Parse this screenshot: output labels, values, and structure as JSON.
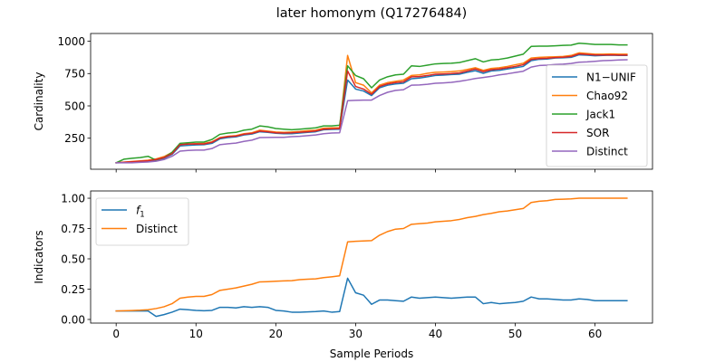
{
  "title": "later homonym (Q17276484)",
  "chart_data": [
    {
      "type": "line",
      "ylabel": "Cardinality",
      "xlabel": "",
      "xlim": [
        -3.2,
        67.2
      ],
      "ylim": [
        10,
        1060
      ],
      "xticks": [
        0,
        10,
        20,
        30,
        40,
        50,
        60
      ],
      "yticks": [
        250,
        500,
        750,
        1000
      ],
      "show_x_tick_labels": false,
      "grid": false,
      "legend_position": "lower-right",
      "x": [
        0,
        1,
        2,
        3,
        4,
        5,
        6,
        7,
        8,
        9,
        10,
        11,
        12,
        13,
        14,
        15,
        16,
        17,
        18,
        19,
        20,
        21,
        22,
        23,
        24,
        25,
        26,
        27,
        28,
        29,
        30,
        31,
        32,
        33,
        34,
        35,
        36,
        37,
        38,
        39,
        40,
        41,
        42,
        43,
        44,
        45,
        46,
        47,
        48,
        49,
        50,
        51,
        52,
        53,
        54,
        55,
        56,
        57,
        58,
        59,
        60,
        61,
        62,
        63,
        64
      ],
      "series": [
        {
          "name": "N1−UNIF",
          "color": "#1f77b4",
          "values": [
            60,
            62,
            65,
            68,
            72,
            80,
            95,
            125,
            190,
            195,
            198,
            200,
            210,
            245,
            255,
            260,
            275,
            282,
            300,
            295,
            288,
            285,
            285,
            290,
            295,
            300,
            315,
            318,
            320,
            700,
            630,
            615,
            580,
            640,
            660,
            670,
            675,
            710,
            715,
            725,
            735,
            738,
            742,
            745,
            760,
            772,
            752,
            770,
            775,
            785,
            795,
            805,
            850,
            860,
            862,
            870,
            872,
            875,
            895,
            892,
            888,
            890,
            892,
            890,
            890
          ]
        },
        {
          "name": "Chao92",
          "color": "#ff7f0e",
          "values": [
            60,
            65,
            70,
            75,
            80,
            90,
            108,
            140,
            200,
            205,
            208,
            210,
            222,
            255,
            265,
            270,
            285,
            292,
            312,
            305,
            298,
            295,
            298,
            302,
            308,
            312,
            328,
            330,
            330,
            890,
            680,
            660,
            600,
            660,
            680,
            690,
            700,
            735,
            740,
            752,
            760,
            762,
            765,
            770,
            782,
            795,
            775,
            790,
            795,
            805,
            818,
            830,
            870,
            875,
            878,
            880,
            882,
            890,
            910,
            905,
            900,
            900,
            902,
            900,
            900
          ]
        },
        {
          "name": "Jack1",
          "color": "#2ca02c",
          "values": [
            60,
            88,
            95,
            100,
            110,
            80,
            100,
            140,
            210,
            215,
            220,
            220,
            240,
            280,
            290,
            295,
            312,
            320,
            345,
            338,
            325,
            320,
            315,
            320,
            325,
            330,
            345,
            345,
            350,
            810,
            735,
            710,
            640,
            700,
            725,
            740,
            745,
            810,
            805,
            815,
            825,
            828,
            830,
            835,
            850,
            865,
            840,
            855,
            860,
            870,
            885,
            900,
            960,
            962,
            962,
            965,
            968,
            970,
            985,
            980,
            975,
            975,
            975,
            972,
            972
          ]
        },
        {
          "name": "SOR",
          "color": "#d62728",
          "values": [
            60,
            64,
            68,
            72,
            76,
            85,
            100,
            130,
            200,
            205,
            206,
            205,
            218,
            252,
            262,
            266,
            280,
            287,
            305,
            300,
            292,
            290,
            292,
            296,
            300,
            306,
            320,
            322,
            325,
            770,
            650,
            630,
            590,
            650,
            670,
            680,
            686,
            725,
            727,
            735,
            745,
            747,
            750,
            755,
            770,
            785,
            765,
            780,
            785,
            795,
            805,
            818,
            860,
            866,
            868,
            874,
            876,
            882,
            902,
            898,
            894,
            894,
            895,
            893,
            893
          ]
        },
        {
          "name": "Distinct",
          "color": "#9467bd",
          "values": [
            60,
            60,
            60,
            63,
            66,
            72,
            85,
            110,
            150,
            155,
            158,
            158,
            170,
            200,
            207,
            212,
            225,
            235,
            255,
            256,
            257,
            257,
            262,
            265,
            270,
            275,
            285,
            290,
            292,
            540,
            543,
            545,
            545,
            580,
            605,
            620,
            625,
            660,
            662,
            667,
            675,
            678,
            682,
            690,
            700,
            712,
            720,
            728,
            740,
            748,
            758,
            768,
            800,
            812,
            815,
            820,
            823,
            828,
            838,
            840,
            845,
            850,
            852,
            855,
            857
          ]
        }
      ]
    },
    {
      "type": "line",
      "ylabel": "Indicators",
      "xlabel": "Sample Periods",
      "xlim": [
        -3.2,
        67.2
      ],
      "ylim": [
        -0.03,
        1.06
      ],
      "xticks": [
        0,
        10,
        20,
        30,
        40,
        50,
        60
      ],
      "yticks": [
        0.0,
        0.25,
        0.5,
        0.75,
        1.0
      ],
      "ytick_labels": [
        "0.00",
        "0.25",
        "0.50",
        "0.75",
        "1.00"
      ],
      "grid": false,
      "legend_position": "upper-left",
      "x": [
        0,
        1,
        2,
        3,
        4,
        5,
        6,
        7,
        8,
        9,
        10,
        11,
        12,
        13,
        14,
        15,
        16,
        17,
        18,
        19,
        20,
        21,
        22,
        23,
        24,
        25,
        26,
        27,
        28,
        29,
        30,
        31,
        32,
        33,
        34,
        35,
        36,
        37,
        38,
        39,
        40,
        41,
        42,
        43,
        44,
        45,
        46,
        47,
        48,
        49,
        50,
        51,
        52,
        53,
        54,
        55,
        56,
        57,
        58,
        59,
        60,
        61,
        62,
        63,
        64
      ],
      "series": [
        {
          "name": "f",
          "name_subscript": "1",
          "color": "#1f77b4",
          "values": [
            0.07,
            0.07,
            0.07,
            0.07,
            0.07,
            0.025,
            0.04,
            0.06,
            0.085,
            0.08,
            0.075,
            0.072,
            0.075,
            0.1,
            0.1,
            0.095,
            0.105,
            0.1,
            0.105,
            0.1,
            0.075,
            0.07,
            0.06,
            0.06,
            0.062,
            0.065,
            0.07,
            0.06,
            0.065,
            0.34,
            0.22,
            0.2,
            0.125,
            0.16,
            0.16,
            0.155,
            0.15,
            0.185,
            0.175,
            0.18,
            0.185,
            0.18,
            0.175,
            0.18,
            0.185,
            0.185,
            0.13,
            0.14,
            0.13,
            0.135,
            0.14,
            0.15,
            0.185,
            0.17,
            0.17,
            0.165,
            0.16,
            0.16,
            0.17,
            0.165,
            0.155,
            0.155,
            0.155,
            0.155,
            0.155
          ]
        },
        {
          "name": "Distinct",
          "color": "#ff7f0e",
          "values": [
            0.07,
            0.072,
            0.074,
            0.076,
            0.08,
            0.09,
            0.105,
            0.13,
            0.175,
            0.185,
            0.19,
            0.19,
            0.205,
            0.24,
            0.25,
            0.26,
            0.275,
            0.29,
            0.31,
            0.312,
            0.315,
            0.318,
            0.32,
            0.328,
            0.332,
            0.335,
            0.345,
            0.352,
            0.36,
            0.64,
            0.645,
            0.648,
            0.65,
            0.695,
            0.725,
            0.745,
            0.75,
            0.785,
            0.79,
            0.795,
            0.805,
            0.81,
            0.815,
            0.825,
            0.84,
            0.85,
            0.865,
            0.875,
            0.888,
            0.895,
            0.905,
            0.915,
            0.965,
            0.975,
            0.98,
            0.99,
            0.992,
            0.995,
            1.0,
            1.0,
            1.0,
            1.0,
            1.0,
            1.0,
            1.0
          ]
        }
      ]
    }
  ]
}
